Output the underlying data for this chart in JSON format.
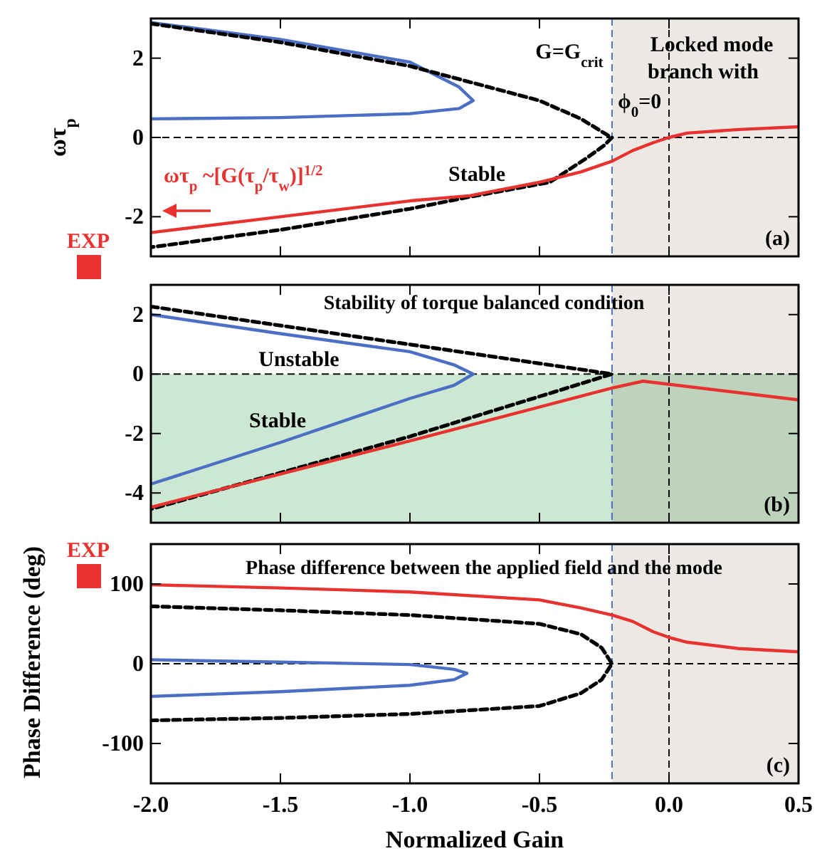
{
  "chart_data": [
    {
      "type": "line",
      "ylabel": "ωτ$_{p}$",
      "xlim": [
        -2,
        0.5
      ],
      "xticks": [
        -2,
        -1.5,
        -1,
        -0.5,
        0,
        0.5
      ],
      "ylim": [
        -3,
        3
      ],
      "yticks": [
        -2,
        0,
        2
      ],
      "tick_labels": "y",
      "series": [
        {
          "color": "#4a6fc4",
          "line_style": "solid",
          "x": [
            -2,
            -1.5,
            -1,
            -0.81,
            -0.756,
            -0.81,
            -1,
            -1.5,
            -2
          ],
          "values": [
            2.9,
            2.47,
            1.9,
            1.27,
            0.93,
            0.73,
            0.6,
            0.5,
            0.47
          ]
        },
        {
          "color": "#000000",
          "line_style": "dashed",
          "x": [
            -2,
            -1.5,
            -1,
            -0.5,
            -0.34,
            -0.23,
            -0.22,
            -0.25,
            -0.32,
            -0.46,
            -0.77,
            -1,
            -1.5,
            -2
          ],
          "values": [
            2.87,
            2.4,
            1.8,
            0.93,
            0.47,
            0.03,
            0,
            -0.2,
            -0.53,
            -1.13,
            -1.5,
            -1.8,
            -2.33,
            -2.77
          ]
        },
        {
          "color": "#e8322f",
          "line_style": "solid",
          "x": [
            -2,
            -1.5,
            -1,
            -0.77,
            -0.5,
            -0.34,
            -0.22,
            -0.14,
            -0.06,
            0,
            0.07,
            0.27,
            0.5
          ],
          "values": [
            -2.4,
            -2,
            -1.6,
            -1.47,
            -1.13,
            -0.87,
            -0.6,
            -0.33,
            -0.13,
            0,
            0.11,
            0.2,
            0.27
          ]
        }
      ],
      "ref_lines": [
        {
          "axis": "x",
          "value": -0.22,
          "color": "#4a6fc4",
          "line_style": "dashed"
        },
        {
          "axis": "x",
          "value": 0,
          "color": "#000000",
          "line_style": "dashed"
        },
        {
          "axis": "y",
          "value": 0,
          "color": "#000000",
          "line_style": "dashed"
        }
      ],
      "bands": [
        {
          "axis": "x",
          "from": -0.22,
          "to": 0.5,
          "color": "#ece8e4"
        }
      ],
      "annotations": [
        "G=G$_{crit}$",
        "Locked mode",
        "branch with",
        "ϕ$_{0}$=0",
        "ωτ$_{p}$ ~[G(τ$_{p}$/τ$_{w}$)]$^{1/2}$",
        "Stable",
        "(a)",
        "EXP"
      ]
    },
    {
      "type": "line",
      "xlim": [
        -2,
        0.5
      ],
      "xticks": [
        -2,
        -1.5,
        -1,
        -0.5,
        0,
        0.5
      ],
      "ylim": [
        -5,
        3
      ],
      "yticks": [
        -4,
        -2,
        0,
        2
      ],
      "tick_labels": "y",
      "series": [
        {
          "color": "#4a6fc4",
          "line_style": "solid",
          "x": [
            -2,
            -1.5,
            -1,
            -0.83,
            -0.756,
            -0.83,
            -1,
            -1.5,
            -2
          ],
          "values": [
            2,
            1.36,
            0.75,
            0.31,
            0,
            -0.38,
            -0.82,
            -2.3,
            -3.7
          ]
        },
        {
          "color": "#000000",
          "line_style": "dashed",
          "x": [
            -2,
            -0.22,
            -1,
            -2
          ],
          "values": [
            2.27,
            0,
            -2.1,
            -4.54
          ]
        },
        {
          "color": "#e8322f",
          "line_style": "solid",
          "x": [
            -2,
            -1,
            -0.22,
            -0.1,
            0.5
          ],
          "values": [
            -4.48,
            -2.25,
            -0.47,
            -0.24,
            -0.87
          ]
        }
      ],
      "ref_lines": [
        {
          "axis": "x",
          "value": -0.22,
          "color": "#4a6fc4",
          "line_style": "dashed"
        },
        {
          "axis": "x",
          "value": 0,
          "color": "#000000",
          "line_style": "dashed"
        },
        {
          "axis": "y",
          "value": 0,
          "color": "#000000",
          "line_style": "dashed"
        }
      ],
      "bands": [
        {
          "axis": "x",
          "from": -0.22,
          "to": 0.5,
          "color": "#ece8e4"
        },
        {
          "axis": "y",
          "from": -5,
          "to": 0,
          "color": "#cde8d2"
        }
      ],
      "annotations": [
        "Stability of torque balanced condition",
        "Unstable",
        "Stable",
        "(b)"
      ]
    },
    {
      "type": "line",
      "xlabel": "Normalized Gain",
      "ylabel": "Phase Difference (deg)",
      "xlim": [
        -2,
        0.5
      ],
      "xticks": [
        {
          "value": -2,
          "label": "-2.0"
        },
        {
          "value": -1.5,
          "label": "-1.5"
        },
        {
          "value": -1,
          "label": "-1.0"
        },
        {
          "value": -0.5,
          "label": "-0.5"
        },
        {
          "value": 0,
          "label": "0.0"
        },
        {
          "value": 0.5,
          "label": "0.5"
        }
      ],
      "ylim": [
        -150,
        150
      ],
      "yticks": [
        -100,
        0,
        100
      ],
      "series": [
        {
          "color": "#e8322f",
          "line_style": "solid",
          "x": [
            -2,
            -1.5,
            -1,
            -0.5,
            -0.34,
            -0.22,
            -0.14,
            -0.06,
            0,
            0.07,
            0.27,
            0.5
          ],
          "values": [
            99,
            95,
            90,
            80,
            70,
            61,
            53,
            40,
            33,
            27,
            19,
            15
          ]
        },
        {
          "color": "#000000",
          "line_style": "dashed",
          "x": [
            -2,
            -1.5,
            -1,
            -0.5,
            -0.34,
            -0.26,
            -0.22,
            -0.26,
            -0.34,
            -0.5,
            -1,
            -1.5,
            -2
          ],
          "values": [
            72,
            67,
            61,
            50,
            37,
            20,
            0,
            -20,
            -37,
            -53,
            -63,
            -68,
            -71
          ]
        },
        {
          "color": "#4a6fc4",
          "line_style": "solid",
          "x": [
            -2,
            -1.5,
            -1,
            -0.83,
            -0.78,
            -0.83,
            -1,
            -1.5,
            -2
          ],
          "values": [
            5,
            2,
            -1,
            -7,
            -12,
            -20,
            -27,
            -35,
            -41
          ]
        }
      ],
      "ref_lines": [
        {
          "axis": "x",
          "value": -0.22,
          "color": "#4a6fc4",
          "line_style": "dashed"
        },
        {
          "axis": "x",
          "value": 0,
          "color": "#000000",
          "line_style": "dashed"
        },
        {
          "axis": "y",
          "value": 0,
          "color": "#000000",
          "line_style": "dashed"
        }
      ],
      "bands": [
        {
          "axis": "x",
          "from": -0.22,
          "to": 0.5,
          "color": "#ece8e4"
        }
      ],
      "annotations": [
        "Phase difference between the applied field and the mode",
        "(c)",
        "EXP"
      ]
    }
  ]
}
